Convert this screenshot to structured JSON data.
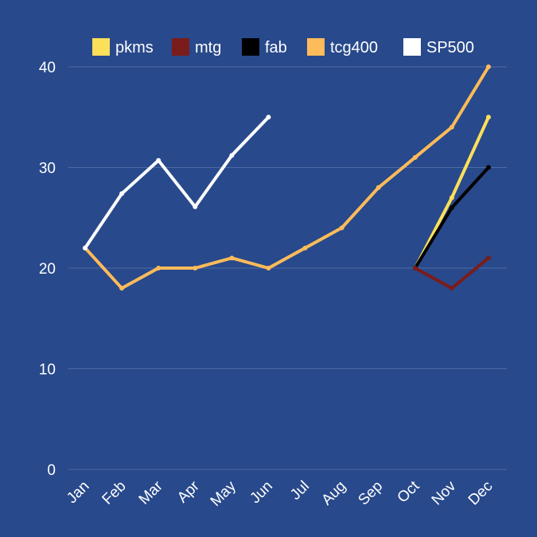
{
  "chart_data": {
    "type": "line",
    "categories": [
      "Jan",
      "Feb",
      "Mar",
      "Apr",
      "May",
      "Jun",
      "Jul",
      "Aug",
      "Sep",
      "Oct",
      "Nov",
      "Dec"
    ],
    "ylim": [
      0,
      40
    ],
    "yticks": [
      0,
      10,
      20,
      30,
      40
    ],
    "grid": true,
    "legend_position": "top",
    "background": "#28498b",
    "series": [
      {
        "name": "pkms",
        "color": "#fde05a",
        "values": [
          null,
          null,
          null,
          null,
          null,
          null,
          null,
          null,
          null,
          20,
          27,
          35
        ]
      },
      {
        "name": "mtg",
        "color": "#7b1c1c",
        "values": [
          null,
          null,
          null,
          null,
          null,
          null,
          null,
          null,
          null,
          20,
          18,
          21
        ]
      },
      {
        "name": "fab",
        "color": "#000000",
        "values": [
          null,
          null,
          null,
          null,
          null,
          null,
          null,
          null,
          null,
          20,
          26,
          30
        ]
      },
      {
        "name": "tcg400",
        "color": "#fdbb5a",
        "values": [
          22,
          18,
          20,
          20,
          21,
          20,
          22,
          24,
          28,
          31,
          34,
          40
        ]
      },
      {
        "name": "SP500",
        "color": "#ffffff",
        "values": [
          22,
          27.4,
          30.7,
          26.1,
          31.2,
          35,
          null,
          null,
          null,
          null,
          null,
          null
        ]
      }
    ]
  }
}
